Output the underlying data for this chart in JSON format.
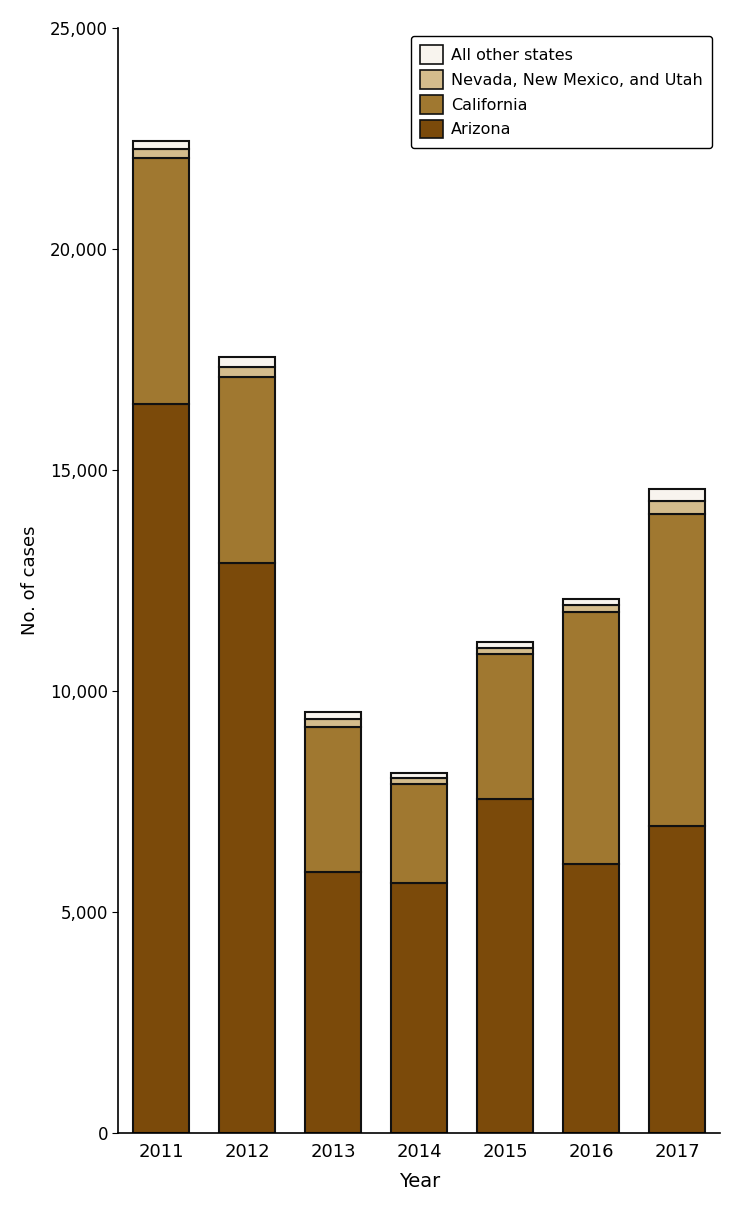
{
  "years": [
    "2011",
    "2012",
    "2013",
    "2014",
    "2015",
    "2016",
    "2017"
  ],
  "arizona": [
    16500,
    12900,
    5900,
    5650,
    7550,
    6100,
    6950
  ],
  "california": [
    5550,
    4200,
    3300,
    2250,
    3300,
    5700,
    7050
  ],
  "nevada_nm_ut": [
    200,
    220,
    170,
    130,
    130,
    145,
    300
  ],
  "other_states": [
    200,
    230,
    150,
    110,
    120,
    130,
    280
  ],
  "color_arizona": "#7B4A0A",
  "color_california": "#A07830",
  "color_nevada": "#D4BC8C",
  "color_other": "#F8F4EE",
  "edge_color": "#111111",
  "ylabel": "No. of cases",
  "xlabel": "Year",
  "ylim": [
    0,
    25000
  ],
  "yticks": [
    0,
    5000,
    10000,
    15000,
    20000,
    25000
  ],
  "legend_labels_top_to_bottom": [
    "All other states",
    "Nevada, New Mexico, and Utah",
    "California",
    "Arizona"
  ],
  "bar_width": 0.65
}
